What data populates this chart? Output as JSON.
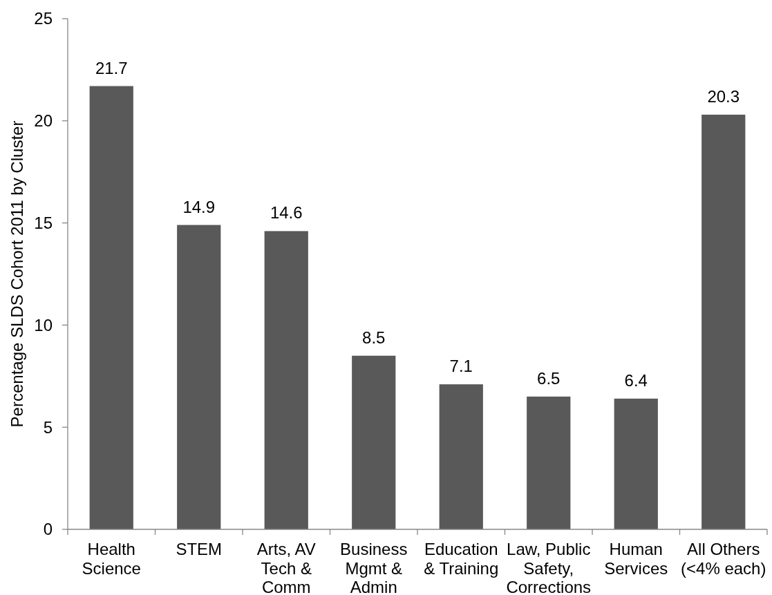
{
  "chart_data": {
    "type": "bar",
    "ylabel": "Percentage SLDS Cohort 2011 by Cluster",
    "categories": [
      "Health Science",
      "STEM",
      "Arts, AV Tech & Comm",
      "Business Mgmt & Admin",
      "Education & Training",
      "Law, Public Safety, Corrections",
      "Human Services",
      "All Others (<4% each)"
    ],
    "values": [
      21.7,
      14.9,
      14.6,
      8.5,
      7.1,
      6.5,
      6.4,
      20.3
    ],
    "color": "#595959",
    "ylim": [
      0,
      25
    ],
    "yticks": [
      0,
      5,
      10,
      15,
      20,
      25
    ],
    "data_labels": true
  }
}
